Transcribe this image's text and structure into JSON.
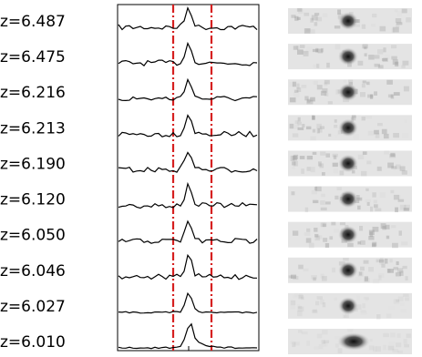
{
  "rows": [
    {
      "label": "z=6.487"
    },
    {
      "label": "z=6.475"
    },
    {
      "label": "z=6.216"
    },
    {
      "label": "z=6.213"
    },
    {
      "label": "z=6.190"
    },
    {
      "label": "z=6.120"
    },
    {
      "label": "z=6.050"
    },
    {
      "label": "z=6.046"
    },
    {
      "label": "z=6.027"
    },
    {
      "label": "z=6.010"
    }
  ]
}
